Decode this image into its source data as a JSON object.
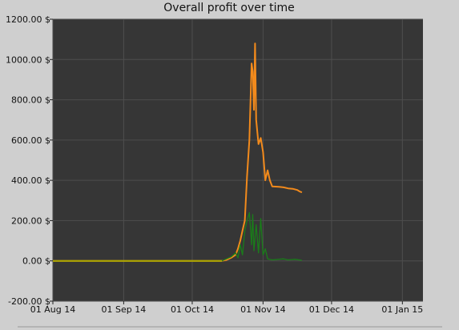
{
  "chart_data": {
    "type": "line",
    "title": "Overall profit over time",
    "xlabel": "",
    "ylabel": "",
    "ylim": [
      -200,
      1200
    ],
    "y_ticks": [
      "1200.00 $",
      "1000.00 $",
      "800.00 $",
      "600.00 $",
      "400.00 $",
      "200.00 $",
      "0.00 $",
      "-200.00 $"
    ],
    "y_tick_values": [
      1200,
      1000,
      800,
      600,
      400,
      200,
      0,
      -200
    ],
    "x_ticks": [
      "01 Aug 14",
      "01 Sep 14",
      "01 Oct 14",
      "01 Nov 14",
      "01 Dec 14",
      "01 Jan 15"
    ],
    "x_tick_dates": [
      "2014-08-01",
      "2014-09-01",
      "2014-10-01",
      "2014-11-01",
      "2014-12-01",
      "2015-01-01"
    ],
    "xlim": [
      "2014-08-01",
      "2015-01-10"
    ],
    "grid": true,
    "colors": {
      "plot_bg": "#363636",
      "grid": "#4e4e4e",
      "series1": "#f28a1c",
      "series2": "#1a7d1a",
      "baseline": "#a8a800"
    },
    "series": [
      {
        "color": "#f28a1c",
        "points": [
          [
            "2014-08-01",
            0
          ],
          [
            "2014-10-14",
            0
          ],
          [
            "2014-10-16",
            5
          ],
          [
            "2014-10-18",
            15
          ],
          [
            "2014-10-20",
            30
          ],
          [
            "2014-10-21",
            60
          ],
          [
            "2014-10-22",
            100
          ],
          [
            "2014-10-23",
            150
          ],
          [
            "2014-10-24",
            200
          ],
          [
            "2014-10-25",
            420
          ],
          [
            "2014-10-26",
            600
          ],
          [
            "2014-10-27",
            980
          ],
          [
            "2014-10-27T12:00",
            940
          ],
          [
            "2014-10-28",
            750
          ],
          [
            "2014-10-28T12:00",
            1080
          ],
          [
            "2014-10-29",
            700
          ],
          [
            "2014-10-30",
            580
          ],
          [
            "2014-10-31",
            610
          ],
          [
            "2014-11-01",
            540
          ],
          [
            "2014-11-02",
            400
          ],
          [
            "2014-11-03",
            450
          ],
          [
            "2014-11-04",
            400
          ],
          [
            "2014-11-05",
            370
          ],
          [
            "2014-11-08",
            368
          ],
          [
            "2014-11-10",
            365
          ],
          [
            "2014-11-12",
            360
          ],
          [
            "2014-11-14",
            358
          ],
          [
            "2014-11-16",
            352
          ],
          [
            "2014-11-17",
            345
          ],
          [
            "2014-11-18",
            340
          ]
        ]
      },
      {
        "color": "#1a7d1a",
        "points": [
          [
            "2014-08-01",
            0
          ],
          [
            "2014-10-14",
            0
          ],
          [
            "2014-10-16",
            10
          ],
          [
            "2014-10-18",
            20
          ],
          [
            "2014-10-20",
            40
          ],
          [
            "2014-10-21",
            15
          ],
          [
            "2014-10-22",
            80
          ],
          [
            "2014-10-23",
            30
          ],
          [
            "2014-10-24",
            150
          ],
          [
            "2014-10-25",
            200
          ],
          [
            "2014-10-26",
            240
          ],
          [
            "2014-10-27",
            80
          ],
          [
            "2014-10-27T12:00",
            230
          ],
          [
            "2014-10-28",
            50
          ],
          [
            "2014-10-29",
            180
          ],
          [
            "2014-10-30",
            40
          ],
          [
            "2014-10-31",
            210
          ],
          [
            "2014-11-01",
            30
          ],
          [
            "2014-11-02",
            60
          ],
          [
            "2014-11-03",
            10
          ],
          [
            "2014-11-05",
            5
          ],
          [
            "2014-11-10",
            10
          ],
          [
            "2014-11-12",
            5
          ],
          [
            "2014-11-15",
            8
          ],
          [
            "2014-11-18",
            3
          ]
        ]
      }
    ]
  }
}
